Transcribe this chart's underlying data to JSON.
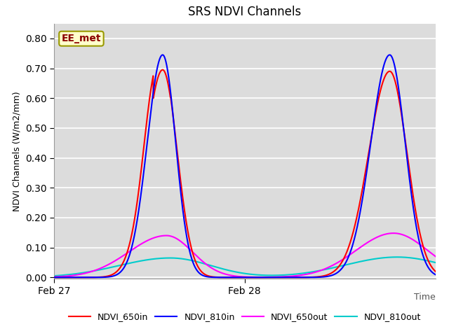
{
  "title": "SRS NDVI Channels",
  "ylabel": "NDVI Channels (W/m2/mm)",
  "xlabel": "Time",
  "xtick_labels": [
    "Feb 27",
    "Feb 28"
  ],
  "xtick_positions": [
    0.0,
    0.5
  ],
  "ylim": [
    -0.005,
    0.85
  ],
  "yticks": [
    0.0,
    0.1,
    0.2,
    0.3,
    0.4,
    0.5,
    0.6,
    0.7,
    0.8
  ],
  "annotation_text": "EE_met",
  "annotation_color": "#8B0000",
  "annotation_bg": "#FFFFCC",
  "annotation_border": "#999900",
  "colors": {
    "NDVI_650in": "#FF0000",
    "NDVI_810in": "#0000FF",
    "NDVI_650out": "#FF00FF",
    "NDVI_810out": "#00CCCC"
  },
  "bg_color": "#DCDCDC",
  "line_width": 1.5
}
